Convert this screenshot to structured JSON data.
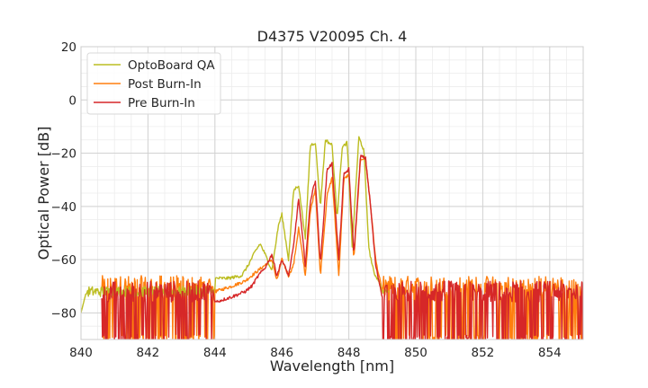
{
  "chart_data": {
    "type": "line",
    "title": "D4375 V20095 Ch. 4",
    "xlabel": "Wavelength [nm]",
    "ylabel": "Optical Power [dB]",
    "xlim": [
      840,
      855
    ],
    "ylim": [
      -90,
      20
    ],
    "xticks": [
      840,
      842,
      844,
      846,
      848,
      850,
      852,
      854
    ],
    "yticks": [
      20,
      0,
      -20,
      -40,
      -60,
      -80
    ],
    "ytick_labels": [
      "20",
      "0",
      "−20",
      "−40",
      "−60",
      "−80"
    ],
    "grid": true,
    "minor_grid": true,
    "legend_position": "top-left",
    "series": [
      {
        "name": "OptoBoard QA",
        "color": "#bcbd22",
        "noise_floor": -72,
        "noise_range": [
          840,
          849.2
        ],
        "x": [
          844.0,
          844.4,
          844.8,
          845.0,
          845.2,
          845.35,
          845.5,
          845.7,
          845.9,
          846.0,
          846.2,
          846.35,
          846.5,
          846.7,
          846.85,
          847.0,
          847.15,
          847.3,
          847.5,
          847.65,
          847.8,
          847.95,
          848.1,
          848.3,
          848.45,
          848.6,
          848.75,
          848.9,
          849.0,
          849.2
        ],
        "y": [
          -67,
          -67,
          -66,
          -62,
          -57,
          -54,
          -58,
          -64,
          -47,
          -43,
          -60,
          -34,
          -32,
          -52,
          -17,
          -16,
          -40,
          -15,
          -17,
          -44,
          -18,
          -16,
          -55,
          -14,
          -19,
          -56,
          -65,
          -68,
          -72,
          -72
        ]
      },
      {
        "name": "Post Burn-In",
        "color": "#ff7f0e",
        "noise_floor": -70,
        "noise_range": [
          840.6,
          855
        ],
        "x": [
          844.0,
          844.5,
          844.9,
          845.1,
          845.3,
          845.5,
          845.7,
          845.85,
          846.0,
          846.2,
          846.35,
          846.5,
          846.7,
          846.85,
          847.0,
          847.15,
          847.35,
          847.5,
          847.7,
          847.85,
          848.0,
          848.15,
          848.35,
          848.5,
          848.65,
          848.8,
          849.0
        ],
        "y": [
          -72,
          -70,
          -68,
          -66,
          -64,
          -62,
          -60,
          -68,
          -60,
          -66,
          -62,
          -48,
          -66,
          -42,
          -33,
          -66,
          -36,
          -29,
          -66,
          -30,
          -28,
          -60,
          -22,
          -22,
          -40,
          -60,
          -72
        ]
      },
      {
        "name": "Pre Burn-In",
        "color": "#d62728",
        "noise_floor": -72,
        "noise_range": [
          840.6,
          855
        ],
        "x": [
          844.0,
          844.5,
          844.9,
          845.1,
          845.3,
          845.5,
          845.7,
          845.85,
          846.0,
          846.2,
          846.35,
          846.5,
          846.7,
          846.85,
          847.0,
          847.15,
          847.35,
          847.5,
          847.7,
          847.85,
          848.0,
          848.15,
          848.35,
          848.5,
          848.65,
          848.8,
          849.0
        ],
        "y": [
          -76,
          -74,
          -72,
          -70,
          -66,
          -63,
          -58,
          -66,
          -60,
          -66,
          -55,
          -37,
          -62,
          -38,
          -30,
          -62,
          -26,
          -24,
          -60,
          -28,
          -26,
          -58,
          -21,
          -22,
          -40,
          -62,
          -74
        ]
      }
    ]
  }
}
